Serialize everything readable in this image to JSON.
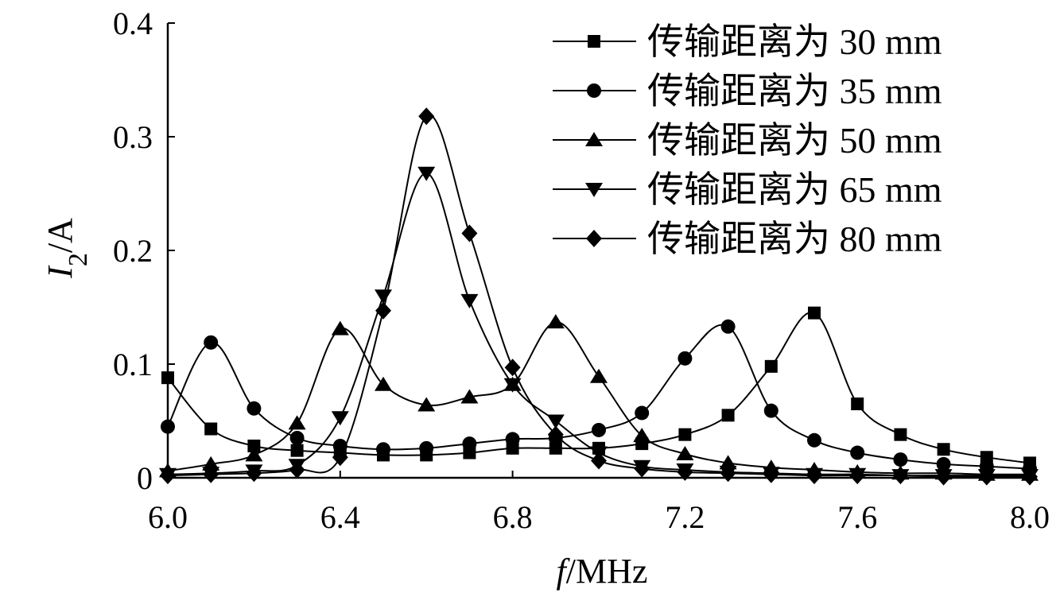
{
  "chart_data": {
    "type": "line",
    "xlabel": {
      "var": "f",
      "sep": "/",
      "unit": "MHz"
    },
    "ylabel": {
      "var": "I",
      "sub": "2",
      "sep": "/",
      "unit": "A"
    },
    "xlim": [
      6.0,
      8.0
    ],
    "ylim": [
      0,
      0.4
    ],
    "xticks": [
      6.0,
      6.4,
      6.8,
      7.2,
      7.6,
      8.0
    ],
    "xtick_labels": [
      "6.0",
      "6.4",
      "6.8",
      "7.2",
      "7.6",
      "8.0"
    ],
    "yticks": [
      0,
      0.1,
      0.2,
      0.3,
      0.4
    ],
    "ytick_labels": [
      "0",
      "0.1",
      "0.2",
      "0.3",
      "0.4"
    ],
    "grid": false,
    "legend_position": "top-right",
    "x": [
      6.0,
      6.1,
      6.2,
      6.3,
      6.4,
      6.5,
      6.6,
      6.7,
      6.8,
      6.9,
      7.0,
      7.1,
      7.2,
      7.3,
      7.4,
      7.5,
      7.6,
      7.7,
      7.8,
      7.9,
      8.0
    ],
    "series": [
      {
        "name": "传输距离为 30 mm",
        "marker": "square",
        "values": [
          0.088,
          0.043,
          0.028,
          0.024,
          0.022,
          0.02,
          0.02,
          0.022,
          0.026,
          0.026,
          0.026,
          0.03,
          0.038,
          0.055,
          0.098,
          0.145,
          0.065,
          0.038,
          0.025,
          0.018,
          0.013
        ]
      },
      {
        "name": "传输距离为 35 mm",
        "marker": "circle",
        "values": [
          0.045,
          0.119,
          0.061,
          0.035,
          0.028,
          0.025,
          0.026,
          0.03,
          0.034,
          0.035,
          0.042,
          0.057,
          0.105,
          0.133,
          0.059,
          0.033,
          0.022,
          0.016,
          0.012,
          0.01,
          0.008
        ]
      },
      {
        "name": "传输距离为 50 mm",
        "marker": "triangle-up",
        "values": [
          0.006,
          0.012,
          0.02,
          0.048,
          0.131,
          0.082,
          0.064,
          0.071,
          0.082,
          0.137,
          0.089,
          0.037,
          0.021,
          0.013,
          0.009,
          0.007,
          0.005,
          0.004,
          0.004,
          0.003,
          0.003
        ]
      },
      {
        "name": "传输距离为 65 mm",
        "marker": "triangle-down",
        "values": [
          0.003,
          0.004,
          0.006,
          0.011,
          0.053,
          0.16,
          0.268,
          0.156,
          0.082,
          0.05,
          0.022,
          0.01,
          0.007,
          0.005,
          0.004,
          0.003,
          0.003,
          0.002,
          0.002,
          0.002,
          0.002
        ]
      },
      {
        "name": "传输距离为 80 mm",
        "marker": "diamond",
        "values": [
          0.002,
          0.003,
          0.004,
          0.007,
          0.018,
          0.147,
          0.318,
          0.215,
          0.097,
          0.038,
          0.015,
          0.008,
          0.005,
          0.004,
          0.003,
          0.002,
          0.002,
          0.002,
          0.001,
          0.001,
          0.001
        ]
      }
    ]
  }
}
